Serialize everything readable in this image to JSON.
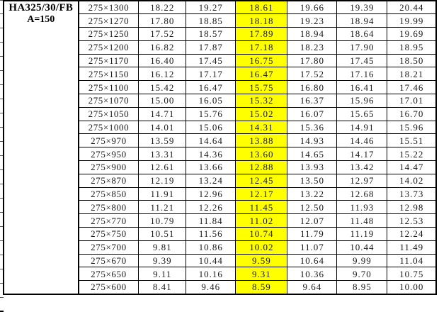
{
  "header": {
    "model": "HA325/30/FB",
    "spec": "A=150"
  },
  "colors": {
    "highlight": "#FFFF00",
    "grid": "#000000",
    "text": "#1A1A1A",
    "background": "#FFFFFF"
  },
  "table": {
    "highlight_column_index": 2,
    "rows": [
      {
        "label": "275×1300",
        "values": [
          "18.22",
          "19.27",
          "18.61",
          "19.66",
          "19.39",
          "20.44"
        ]
      },
      {
        "label": "275×1270",
        "values": [
          "17.80",
          "18.85",
          "18.18",
          "19.23",
          "18.94",
          "19.99"
        ]
      },
      {
        "label": "275×1250",
        "values": [
          "17.52",
          "18.57",
          "17.89",
          "18.94",
          "18.64",
          "19.69"
        ]
      },
      {
        "label": "275×1200",
        "values": [
          "16.82",
          "17.87",
          "17.18",
          "18.23",
          "17.90",
          "18.95"
        ]
      },
      {
        "label": "275×1170",
        "values": [
          "16.40",
          "17.45",
          "16.75",
          "17.80",
          "17.45",
          "18.50"
        ]
      },
      {
        "label": "275×1150",
        "values": [
          "16.12",
          "17.17",
          "16.47",
          "17.52",
          "17.16",
          "18.21"
        ]
      },
      {
        "label": "275×1100",
        "values": [
          "15.42",
          "16.47",
          "15.75",
          "16.80",
          "16.41",
          "17.46"
        ]
      },
      {
        "label": "275×1070",
        "values": [
          "15.00",
          "16.05",
          "15.32",
          "16.37",
          "15.96",
          "17.01"
        ]
      },
      {
        "label": "275×1050",
        "values": [
          "14.71",
          "15.76",
          "15.02",
          "16.07",
          "15.65",
          "16.70"
        ]
      },
      {
        "label": "275×1000",
        "values": [
          "14.01",
          "15.06",
          "14.31",
          "15.36",
          "14.91",
          "15.96"
        ]
      },
      {
        "label": "275×970",
        "values": [
          "13.59",
          "14.64",
          "13.88",
          "14.93",
          "14.46",
          "15.51"
        ]
      },
      {
        "label": "275×950",
        "values": [
          "13.31",
          "14.36",
          "13.60",
          "14.65",
          "14.17",
          "15.22"
        ]
      },
      {
        "label": "275×900",
        "values": [
          "12.61",
          "13.66",
          "12.88",
          "13.93",
          "13.42",
          "14.47"
        ]
      },
      {
        "label": "275×870",
        "values": [
          "12.19",
          "13.24",
          "12.45",
          "13.50",
          "12.97",
          "14.02"
        ]
      },
      {
        "label": "275×850",
        "values": [
          "11.91",
          "12.96",
          "12.17",
          "13.22",
          "12.68",
          "13.73"
        ]
      },
      {
        "label": "275×800",
        "values": [
          "11.21",
          "12.26",
          "11.45",
          "12.50",
          "11.93",
          "12.98"
        ]
      },
      {
        "label": "275×770",
        "values": [
          "10.79",
          "11.84",
          "11.02",
          "12.07",
          "11.48",
          "12.53"
        ]
      },
      {
        "label": "275×750",
        "values": [
          "10.51",
          "11.56",
          "10.74",
          "11.79",
          "11.19",
          "12.24"
        ]
      },
      {
        "label": "275×700",
        "values": [
          "9.81",
          "10.86",
          "10.02",
          "11.07",
          "10.44",
          "11.49"
        ]
      },
      {
        "label": "275×670",
        "values": [
          "9.39",
          "10.44",
          "9.59",
          "10.64",
          "9.99",
          "11.04"
        ]
      },
      {
        "label": "275×650",
        "values": [
          "9.11",
          "10.16",
          "9.31",
          "10.36",
          "9.70",
          "10.75"
        ]
      },
      {
        "label": "275×600",
        "values": [
          "8.41",
          "9.46",
          "8.59",
          "9.64",
          "8.95",
          "10.00"
        ]
      }
    ]
  }
}
